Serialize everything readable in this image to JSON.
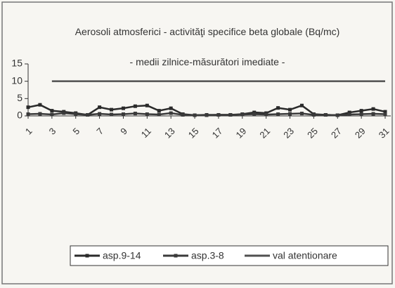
{
  "chart_data": {
    "type": "line",
    "title": "Aerosoli atmosferici  - activităţi specifice beta globale (Bq/mc)",
    "subtitle": "- medii zilnice-măsurători imediate -",
    "x": [
      1,
      2,
      3,
      4,
      5,
      6,
      7,
      8,
      9,
      10,
      11,
      12,
      13,
      14,
      15,
      16,
      17,
      18,
      19,
      20,
      21,
      22,
      23,
      24,
      25,
      26,
      27,
      28,
      29,
      30,
      31
    ],
    "xlim": [
      1,
      31
    ],
    "xticks": [
      1,
      3,
      5,
      7,
      9,
      11,
      13,
      15,
      17,
      19,
      21,
      23,
      25,
      27,
      29,
      31
    ],
    "ylim": [
      0,
      15
    ],
    "yticks": [
      0,
      5,
      10,
      15
    ],
    "legend": "bottom",
    "series": [
      {
        "name": "asp.9-14",
        "color": "#2a2a2a",
        "markers": true,
        "values": [
          2.5,
          3.2,
          1.5,
          1.2,
          0.8,
          0.3,
          2.5,
          1.8,
          2.2,
          2.8,
          3,
          1.5,
          2.2,
          0.5,
          0.2,
          0.3,
          0.3,
          0.3,
          0.5,
          1,
          0.8,
          2.3,
          1.8,
          3,
          0.5,
          0.3,
          0.2,
          1,
          1.5,
          2,
          1.2
        ]
      },
      {
        "name": "asp.3-8",
        "color": "#3a3a3a",
        "markers": true,
        "values": [
          0.5,
          0.6,
          0.4,
          0.8,
          0.5,
          0.3,
          0.6,
          0.4,
          0.5,
          0.7,
          0.5,
          0.4,
          0.8,
          0.3,
          0.2,
          0.2,
          0.3,
          0.3,
          0.4,
          0.5,
          0.4,
          0.5,
          0.6,
          0.7,
          0.3,
          0.3,
          0.2,
          0.4,
          0.5,
          0.6,
          0.5
        ]
      },
      {
        "name": "val atentionare",
        "color": "#505050",
        "markers": false,
        "values": [
          null,
          null,
          10,
          10,
          10,
          10,
          10,
          10,
          10,
          10,
          10,
          10,
          10,
          10,
          10,
          10,
          10,
          10,
          10,
          10,
          10,
          10,
          10,
          10,
          10,
          10,
          10,
          10,
          10,
          10,
          10
        ]
      }
    ]
  }
}
